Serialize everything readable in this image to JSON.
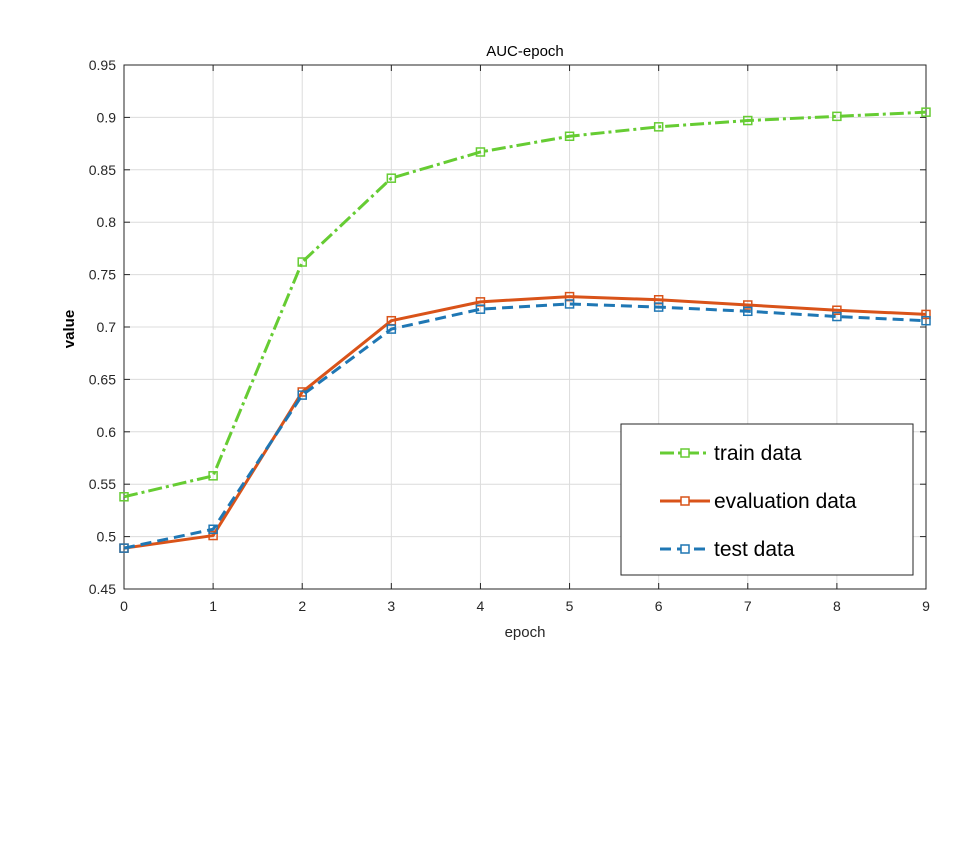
{
  "chart_data": {
    "type": "line",
    "title": "AUC-epoch",
    "xlabel": "epoch",
    "ylabel": "value",
    "xlim": [
      0,
      9
    ],
    "ylim": [
      0.45,
      0.95
    ],
    "x": [
      0,
      1,
      2,
      3,
      4,
      5,
      6,
      7,
      8,
      9
    ],
    "x_ticks": [
      "0",
      "1",
      "2",
      "3",
      "4",
      "5",
      "6",
      "7",
      "8",
      "9"
    ],
    "y_ticks": [
      "0.45",
      "0.5",
      "0.55",
      "0.6",
      "0.65",
      "0.7",
      "0.75",
      "0.8",
      "0.85",
      "0.9",
      "0.95"
    ],
    "grid": true,
    "legend_position": "bottom-right",
    "series": [
      {
        "name": "train data",
        "color": "#66cc33",
        "line_style": "dash-dot",
        "marker": "square",
        "values": [
          0.538,
          0.558,
          0.762,
          0.842,
          0.867,
          0.882,
          0.891,
          0.897,
          0.901,
          0.905
        ]
      },
      {
        "name": "evaluation data",
        "color": "#d95319",
        "line_style": "solid",
        "marker": "square",
        "values": [
          0.489,
          0.501,
          0.638,
          0.706,
          0.724,
          0.729,
          0.726,
          0.721,
          0.716,
          0.712
        ]
      },
      {
        "name": "test data",
        "color": "#1f77b4",
        "line_style": "dashed",
        "marker": "square",
        "values": [
          0.489,
          0.507,
          0.635,
          0.698,
          0.717,
          0.722,
          0.719,
          0.715,
          0.71,
          0.706
        ]
      }
    ]
  }
}
